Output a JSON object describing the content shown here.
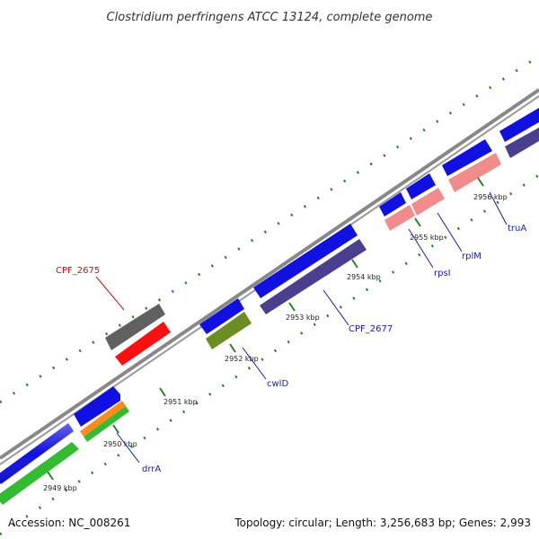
{
  "title": "Clostridium perfringens ATCC 13124, complete genome",
  "footer": {
    "accession": "Accession: NC_008261",
    "summary": "Topology: circular; Length: 3,256,683 bp; Genes: 2,993"
  },
  "colors": {
    "backbone": "#888888",
    "forward_cds": "#1010e0",
    "reverse_cds": "#4a3f8f",
    "rrna_green": "#33bb33",
    "orange": "#ff8c1a",
    "olive": "#6b8e23",
    "pink": "#f08c8c",
    "red": "#ff1010",
    "grey": "#606060",
    "tick": "#2e7d2e",
    "label_blue": "#1a1aaa",
    "label_red": "#d01010"
  },
  "ticks": [
    {
      "label": "2949 kbp"
    },
    {
      "label": "2950 kbp"
    },
    {
      "label": "2951 kbp"
    },
    {
      "label": "2952 kbp"
    },
    {
      "label": "2953 kbp"
    },
    {
      "label": "2954 kbp"
    },
    {
      "label": "2955 kbp"
    },
    {
      "label": "2956 kbp"
    }
  ],
  "gene_labels": [
    {
      "name": "CPF_2675",
      "color": "red"
    },
    {
      "name": "drrA",
      "color": "blue"
    },
    {
      "name": "cwlD",
      "color": "blue"
    },
    {
      "name": "CPF_2677",
      "color": "blue"
    },
    {
      "name": "rpsI",
      "color": "blue"
    },
    {
      "name": "rplM",
      "color": "blue"
    },
    {
      "name": "truA",
      "color": "blue"
    }
  ]
}
